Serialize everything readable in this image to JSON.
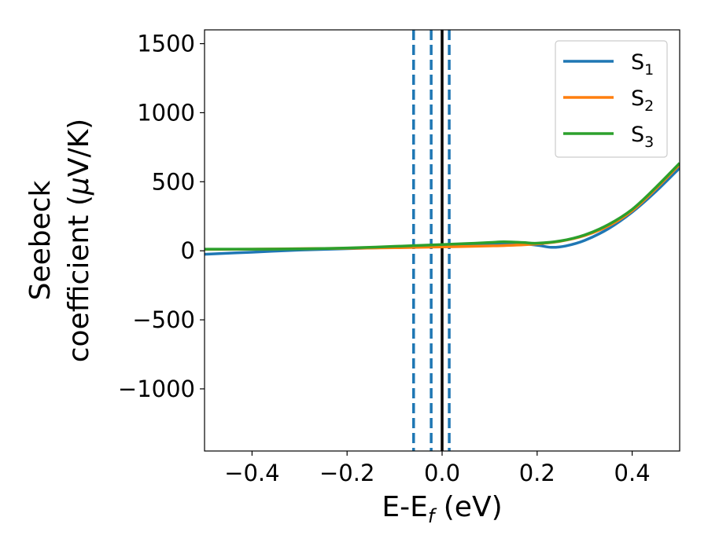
{
  "chart_data": {
    "type": "line",
    "xlabel": {
      "main": "E-E",
      "sub": "f",
      "unit": " (eV)"
    },
    "ylabel": {
      "line1": "Seebeck",
      "line2_prefix": "coefficient  (",
      "mu": "μ",
      "line2_suffix": "V/K)"
    },
    "xlim": [
      -0.5,
      0.5
    ],
    "ylim": [
      -1450,
      1600
    ],
    "xticks": [
      {
        "value": -0.4,
        "label": "−0.4"
      },
      {
        "value": -0.2,
        "label": "−0.2"
      },
      {
        "value": 0.0,
        "label": "0.0"
      },
      {
        "value": 0.2,
        "label": "0.2"
      },
      {
        "value": 0.4,
        "label": "0.4"
      }
    ],
    "yticks": [
      {
        "value": -1000,
        "label": "−1000"
      },
      {
        "value": -500,
        "label": "−500"
      },
      {
        "value": 0,
        "label": "0"
      },
      {
        "value": 500,
        "label": "500"
      },
      {
        "value": 1000,
        "label": "1000"
      },
      {
        "value": 1500,
        "label": "1500"
      }
    ],
    "grid": false,
    "legend_position": "top-right",
    "vlines": [
      {
        "x": -0.06,
        "style": "dashed",
        "color": "#1f77b4"
      },
      {
        "x": -0.023,
        "style": "dashed",
        "color": "#1f77b4"
      },
      {
        "x": 0.015,
        "style": "dashed",
        "color": "#1f77b4"
      },
      {
        "x": 0.0,
        "style": "solid",
        "color": "#000000"
      }
    ],
    "series": [
      {
        "name": "S",
        "sub": "1",
        "color": "#1f77b4",
        "x": [
          -0.5,
          -0.4,
          -0.3,
          -0.2,
          -0.1,
          0.0,
          0.1,
          0.15,
          0.2,
          0.23,
          0.26,
          0.3,
          0.35,
          0.4,
          0.45,
          0.5
        ],
        "y": [
          -25,
          -10,
          5,
          15,
          25,
          35,
          50,
          55,
          40,
          25,
          35,
          75,
          160,
          280,
          430,
          600
        ]
      },
      {
        "name": "S",
        "sub": "2",
        "color": "#ff7f0e",
        "x": [
          -0.5,
          -0.4,
          -0.3,
          -0.2,
          -0.1,
          0.0,
          0.1,
          0.15,
          0.2,
          0.25,
          0.3,
          0.35,
          0.4,
          0.45,
          0.5
        ],
        "y": [
          10,
          12,
          15,
          18,
          22,
          28,
          35,
          40,
          50,
          70,
          110,
          180,
          290,
          450,
          625
        ]
      },
      {
        "name": "S",
        "sub": "3",
        "color": "#2ca02c",
        "x": [
          -0.5,
          -0.4,
          -0.3,
          -0.2,
          -0.1,
          0.0,
          0.05,
          0.1,
          0.13,
          0.17,
          0.2,
          0.25,
          0.3,
          0.35,
          0.4,
          0.45,
          0.5
        ],
        "y": [
          12,
          12,
          14,
          20,
          32,
          45,
          52,
          60,
          65,
          60,
          55,
          72,
          115,
          190,
          300,
          460,
          635
        ]
      }
    ]
  }
}
